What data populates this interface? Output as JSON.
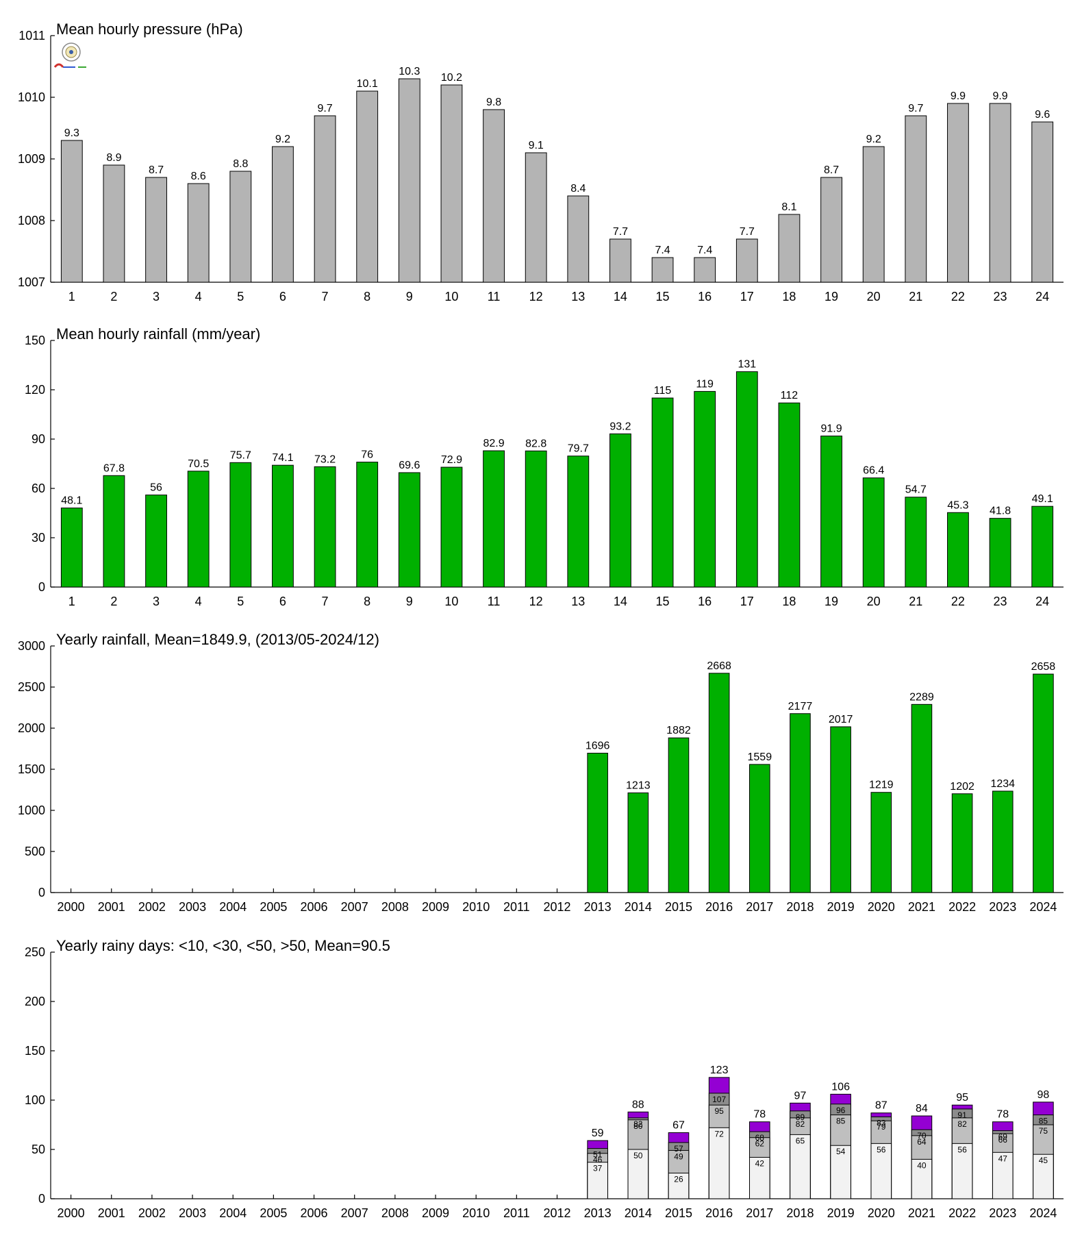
{
  "chart_data": [
    {
      "type": "bar",
      "title": "Mean hourly pressure (hPa)",
      "categories": [
        "1",
        "2",
        "3",
        "4",
        "5",
        "6",
        "7",
        "8",
        "9",
        "10",
        "11",
        "12",
        "13",
        "14",
        "15",
        "16",
        "17",
        "18",
        "19",
        "20",
        "21",
        "22",
        "23",
        "24"
      ],
      "values": [
        1009.3,
        1008.9,
        1008.7,
        1008.6,
        1008.8,
        1009.2,
        1009.7,
        1010.1,
        1010.3,
        1010.2,
        1009.8,
        1009.1,
        1008.4,
        1007.7,
        1007.4,
        1007.4,
        1007.7,
        1008.1,
        1008.7,
        1009.2,
        1009.7,
        1009.9,
        1009.9,
        1009.6
      ],
      "labels": [
        "9.3",
        "8.9",
        "8.7",
        "8.6",
        "8.8",
        "9.2",
        "9.7",
        "10.1",
        "10.3",
        "10.2",
        "9.8",
        "9.1",
        "8.4",
        "7.7",
        "7.4",
        "7.4",
        "7.7",
        "8.1",
        "8.7",
        "9.2",
        "9.7",
        "9.9",
        "9.9",
        "9.6"
      ],
      "ylim": [
        1007,
        1011
      ],
      "yticks": [
        1007,
        1008,
        1009,
        1010,
        1011
      ],
      "color": "#b4b4b4"
    },
    {
      "type": "bar",
      "title": "Mean hourly rainfall (mm/year)",
      "categories": [
        "1",
        "2",
        "3",
        "4",
        "5",
        "6",
        "7",
        "8",
        "9",
        "10",
        "11",
        "12",
        "13",
        "14",
        "15",
        "16",
        "17",
        "18",
        "19",
        "20",
        "21",
        "22",
        "23",
        "24"
      ],
      "values": [
        48.1,
        67.8,
        56,
        70.5,
        75.7,
        74.1,
        73.2,
        76,
        69.6,
        72.9,
        82.9,
        82.8,
        79.7,
        93.2,
        115,
        119,
        131,
        112,
        91.9,
        66.4,
        54.7,
        45.3,
        41.8,
        49.1
      ],
      "labels": [
        "48.1",
        "67.8",
        "56",
        "70.5",
        "75.7",
        "74.1",
        "73.2",
        "76",
        "69.6",
        "72.9",
        "82.9",
        "82.8",
        "79.7",
        "93.2",
        "115",
        "119",
        "131",
        "112",
        "91.9",
        "66.4",
        "54.7",
        "45.3",
        "41.8",
        "49.1"
      ],
      "ylim": [
        0,
        150
      ],
      "yticks": [
        0,
        30,
        60,
        90,
        120,
        150
      ],
      "color": "#00b000"
    },
    {
      "type": "bar",
      "title": "Yearly rainfall, Mean=1849.9, (2013/05-2024/12)",
      "categories": [
        "2000",
        "2001",
        "2002",
        "2003",
        "2004",
        "2005",
        "2006",
        "2007",
        "2008",
        "2009",
        "2010",
        "2011",
        "2012",
        "2013",
        "2014",
        "2015",
        "2016",
        "2017",
        "2018",
        "2019",
        "2020",
        "2021",
        "2022",
        "2023",
        "2024"
      ],
      "values": [
        null,
        null,
        null,
        null,
        null,
        null,
        null,
        null,
        null,
        null,
        null,
        null,
        null,
        1696,
        1213,
        1882,
        2668,
        1559,
        2177,
        2017,
        1219,
        2289,
        1202,
        1234,
        2658
      ],
      "labels": [
        "",
        "",
        "",
        "",
        "",
        "",
        "",
        "",
        "",
        "",
        "",
        "",
        "",
        "1696",
        "1213",
        "1882",
        "2668",
        "1559",
        "2177",
        "2017",
        "1219",
        "2289",
        "1202",
        "1234",
        "2658"
      ],
      "ylim": [
        0,
        3000
      ],
      "yticks": [
        0,
        500,
        1000,
        1500,
        2000,
        2500,
        3000
      ],
      "color": "#00b000"
    },
    {
      "type": "bar",
      "subtype": "stacked-cumulative",
      "title": "Yearly rainy days: <10, <30, <50, >50, Mean=90.5",
      "categories": [
        "2000",
        "2001",
        "2002",
        "2003",
        "2004",
        "2005",
        "2006",
        "2007",
        "2008",
        "2009",
        "2010",
        "2011",
        "2012",
        "2013",
        "2014",
        "2015",
        "2016",
        "2017",
        "2018",
        "2019",
        "2020",
        "2021",
        "2022",
        "2023",
        "2024"
      ],
      "series": [
        {
          "name": "<10",
          "color": "#f2f2f2",
          "values": [
            null,
            null,
            null,
            null,
            null,
            null,
            null,
            null,
            null,
            null,
            null,
            null,
            null,
            37,
            50,
            26,
            72,
            42,
            65,
            54,
            56,
            40,
            56,
            47,
            45
          ]
        },
        {
          "name": "<30",
          "color": "#bfbfbf",
          "values": [
            null,
            null,
            null,
            null,
            null,
            null,
            null,
            null,
            null,
            null,
            null,
            null,
            null,
            46,
            80,
            49,
            95,
            62,
            82,
            85,
            79,
            64,
            82,
            66,
            75
          ]
        },
        {
          "name": "<50",
          "color": "#8c8c8c",
          "values": [
            null,
            null,
            null,
            null,
            null,
            null,
            null,
            null,
            null,
            null,
            null,
            null,
            null,
            51,
            82,
            57,
            107,
            68,
            89,
            96,
            83,
            70,
            91,
            69,
            85
          ]
        },
        {
          "name": ">50",
          "color": "#9400d3",
          "values": [
            null,
            null,
            null,
            null,
            null,
            null,
            null,
            null,
            null,
            null,
            null,
            null,
            null,
            59,
            88,
            67,
            123,
            78,
            97,
            106,
            87,
            84,
            95,
            78,
            98
          ]
        }
      ],
      "ylim": [
        0,
        250
      ],
      "yticks": [
        0,
        50,
        100,
        150,
        200,
        250
      ]
    }
  ]
}
